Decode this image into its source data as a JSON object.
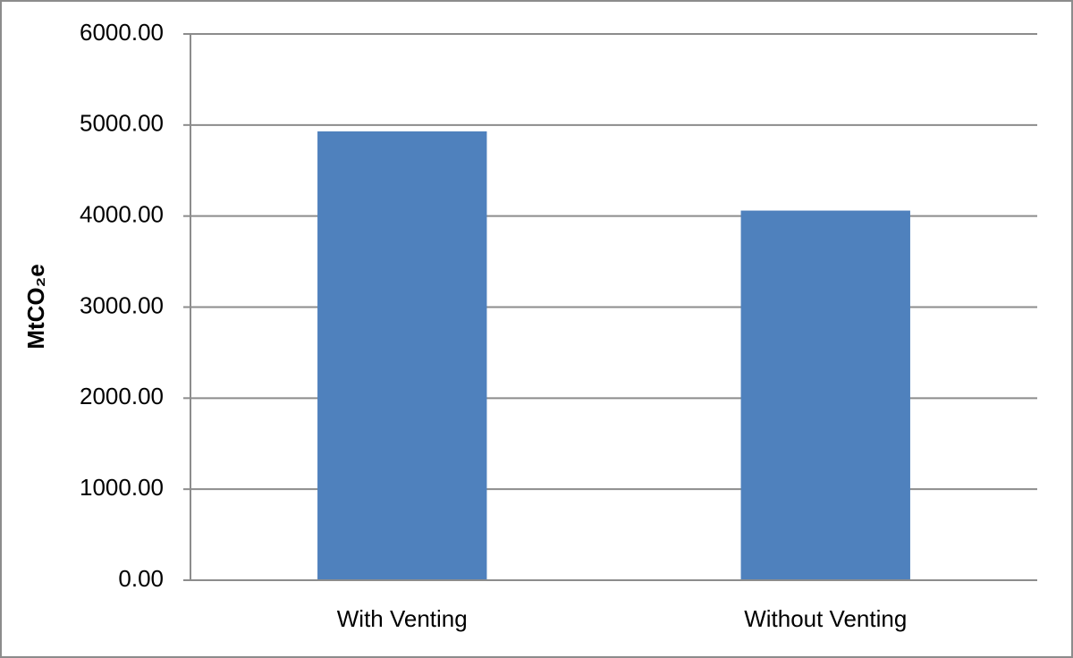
{
  "chart_data": {
    "type": "bar",
    "y_label": "MtCO₂e",
    "categories": [
      "With Venting",
      "Without Venting"
    ],
    "values": [
      4930,
      4060
    ],
    "color": "#4f81bd",
    "ylim": [
      0,
      6000
    ],
    "yticks": [
      {
        "value": 0,
        "label": "0.00"
      },
      {
        "value": 1000,
        "label": "1000.00"
      },
      {
        "value": 2000,
        "label": "2000.00"
      },
      {
        "value": 3000,
        "label": "3000.00"
      },
      {
        "value": 4000,
        "label": "4000.00"
      },
      {
        "value": 5000,
        "label": "5000.00"
      },
      {
        "value": 6000,
        "label": "6000.00"
      }
    ],
    "grid": true
  }
}
